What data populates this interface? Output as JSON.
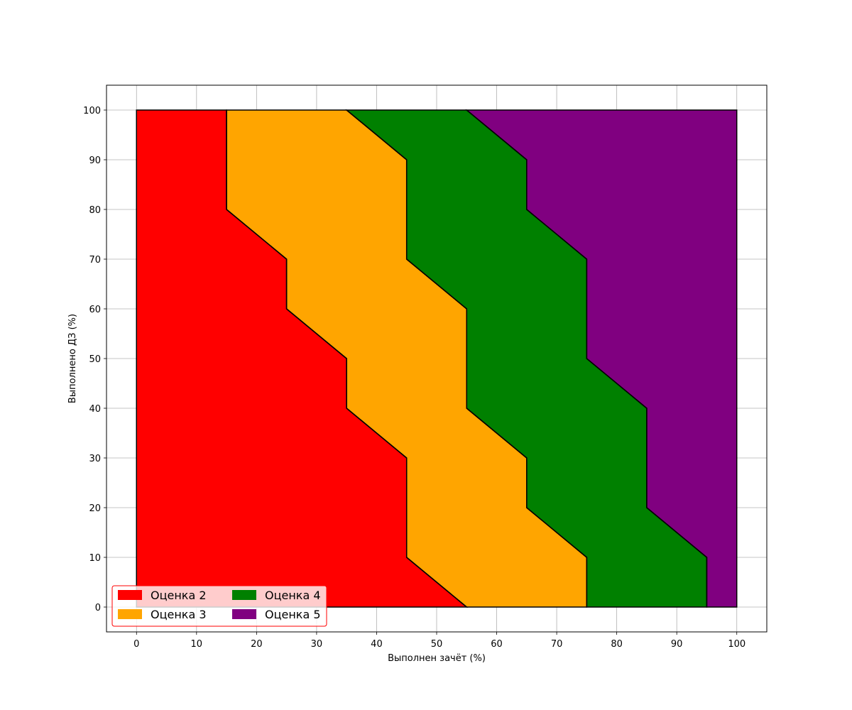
{
  "chart_data": {
    "type": "area",
    "title": "",
    "xlabel": "Выполнен зачёт (%)",
    "ylabel": "Выполнено ДЗ (%)",
    "xlim": [
      -5,
      105
    ],
    "ylim": [
      -5,
      105
    ],
    "xticks": [
      0,
      10,
      20,
      30,
      40,
      50,
      60,
      70,
      80,
      90,
      100
    ],
    "yticks": [
      0,
      10,
      20,
      30,
      40,
      50,
      60,
      70,
      80,
      90,
      100
    ],
    "grid": true,
    "legend": {
      "placement": "lower-left",
      "columns": 2,
      "frame_color": "#ff0000"
    },
    "boundary_y": [
      0,
      10,
      20,
      30,
      40,
      50,
      60,
      70,
      80,
      90,
      100
    ],
    "boundaries": [
      {
        "between": "Оценка 2 / Оценка 3",
        "x": [
          55,
          45,
          45,
          45,
          35,
          35,
          25,
          25,
          15,
          15,
          15
        ]
      },
      {
        "between": "Оценка 3 / Оценка 4",
        "x": [
          75,
          75,
          65,
          65,
          55,
          55,
          55,
          45,
          45,
          45,
          35
        ]
      },
      {
        "between": "Оценка 4 / Оценка 5",
        "x": [
          95,
          95,
          85,
          85,
          85,
          75,
          75,
          75,
          65,
          65,
          55
        ]
      }
    ],
    "x_max": 100,
    "series": [
      {
        "name": "Оценка 2",
        "color": "#ff0000"
      },
      {
        "name": "Оценка 3",
        "color": "#ffa500"
      },
      {
        "name": "Оценка 4",
        "color": "#008000"
      },
      {
        "name": "Оценка 5",
        "color": "#800080"
      }
    ]
  }
}
